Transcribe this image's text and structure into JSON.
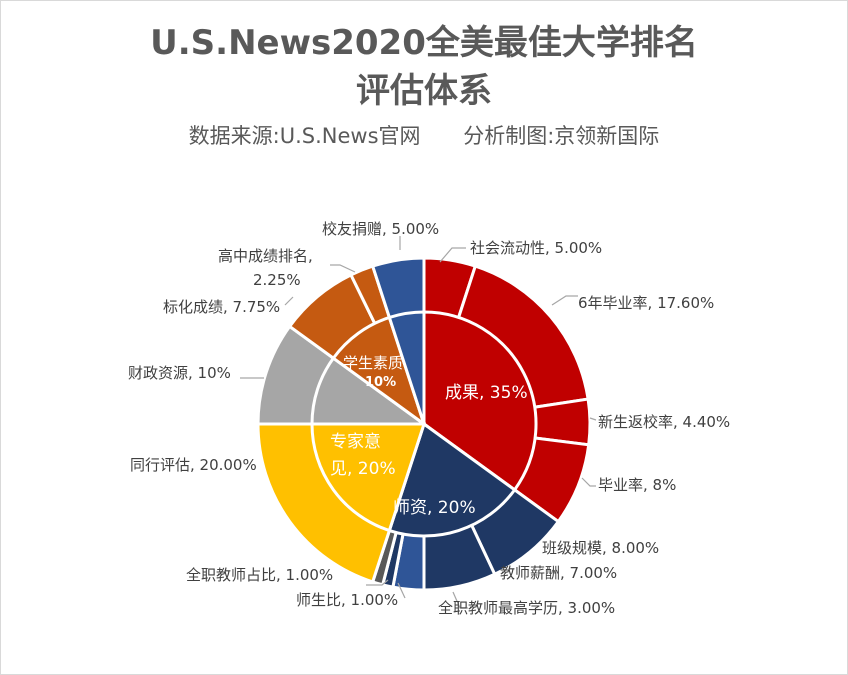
{
  "header": {
    "title_line1": "U.S.News2020全美最佳大学排名",
    "title_line2": "评估体系",
    "source": "数据来源:U.S.News官网",
    "author": "分析制图:京领新国际"
  },
  "chart_data": {
    "type": "pie",
    "subtype": "sunburst-double-donut",
    "title": "U.S.News2020全美最佳大学排名评估体系",
    "subtitle": "数据来源:U.S.News官网  分析制图:京领新国际",
    "inner": [
      {
        "label": "成果",
        "value": 35,
        "display": "成果, 35%",
        "color": "#c00000"
      },
      {
        "label": "师资",
        "value": 20,
        "display": "师资, 20%",
        "color": "#1f3864"
      },
      {
        "label": "专家意见",
        "value": 20,
        "display": "专家意见, 20%",
        "color": "#ffc000"
      },
      {
        "label": "财政资源",
        "value": 10,
        "display": "",
        "color": "#a6a6a6"
      },
      {
        "label": "学生素质",
        "value": 10,
        "display": "学生素质 10%",
        "color": "#c55a11"
      },
      {
        "label": "校友捐赠",
        "value": 5,
        "display": "",
        "color": "#2f5597"
      }
    ],
    "outer": [
      {
        "label": "社会流动性",
        "value": 5.0,
        "display": "社会流动性, 5.00%",
        "parent": "成果",
        "color": "#c00000"
      },
      {
        "label": "6年毕业率",
        "value": 17.6,
        "display": "6年毕业率, 17.60%",
        "parent": "成果",
        "color": "#c00000"
      },
      {
        "label": "新生返校率",
        "value": 4.4,
        "display": "新生返校率, 4.40%",
        "parent": "成果",
        "color": "#c00000"
      },
      {
        "label": "毕业率",
        "value": 8,
        "display": "毕业率, 8%",
        "parent": "成果",
        "color": "#c00000"
      },
      {
        "label": "班级规模",
        "value": 8.0,
        "display": "班级规模, 8.00%",
        "parent": "师资",
        "color": "#1f3864"
      },
      {
        "label": "教师薪酬",
        "value": 7.0,
        "display": "教师薪酬, 7.00%",
        "parent": "师资",
        "color": "#1f3864"
      },
      {
        "label": "全职教师最高学历",
        "value": 3.0,
        "display": "全职教师最高学历, 3.00%",
        "parent": "师资",
        "color": "#2f5597"
      },
      {
        "label": "师生比",
        "value": 1.0,
        "display": "师生比, 1.00%",
        "parent": "师资",
        "color": "#1f3864"
      },
      {
        "label": "全职教师占比",
        "value": 1.0,
        "display": "全职教师占比, 1.00%",
        "parent": "师资",
        "color": "#595959"
      },
      {
        "label": "同行评估",
        "value": 20.0,
        "display": "同行评估, 20.00%",
        "parent": "专家意见",
        "color": "#ffc000"
      },
      {
        "label": "财政资源",
        "value": 10,
        "display": "财政资源, 10%",
        "parent": "财政资源",
        "color": "#a6a6a6"
      },
      {
        "label": "标化成绩",
        "value": 7.75,
        "display": "标化成绩, 7.75%",
        "parent": "学生素质",
        "color": "#c55a11"
      },
      {
        "label": "高中成绩排名",
        "value": 2.25,
        "display": "高中成绩排名, 2.25%",
        "parent": "学生素质",
        "color": "#c55a11"
      },
      {
        "label": "校友捐赠",
        "value": 5.0,
        "display": "校友捐赠, 5.00%",
        "parent": "校友捐赠",
        "color": "#2f5597"
      }
    ],
    "start_angle_deg": 0,
    "direction": "clockwise",
    "legend": "none (data labels)"
  },
  "labels": {
    "inner": {
      "outcomes": "成果, 35%",
      "faculty": "师资, 20%",
      "expert_l1": "专家意",
      "expert_l2": "见, 20%",
      "student_l1": "学生素质",
      "student_l2": "10%"
    },
    "outer": {
      "social": "社会流动性, 5.00%",
      "grad6": "6年毕业率, 17.60%",
      "retention": "新生返校率, 4.40%",
      "gradrate": "毕业率, 8%",
      "classsize": "班级规模, 8.00%",
      "salary": "教师薪酬, 7.00%",
      "degree": "全职教师最高学历, 3.00%",
      "ratio": "师生比, 1.00%",
      "fulltime": "全职教师占比, 1.00%",
      "peer": "同行评估, 20.00%",
      "finance": "财政资源, 10%",
      "test": "标化成绩, 7.75%",
      "hs_l1": "高中成绩排名,",
      "hs_l2": "2.25%",
      "alumni": "校友捐赠, 5.00%"
    }
  }
}
